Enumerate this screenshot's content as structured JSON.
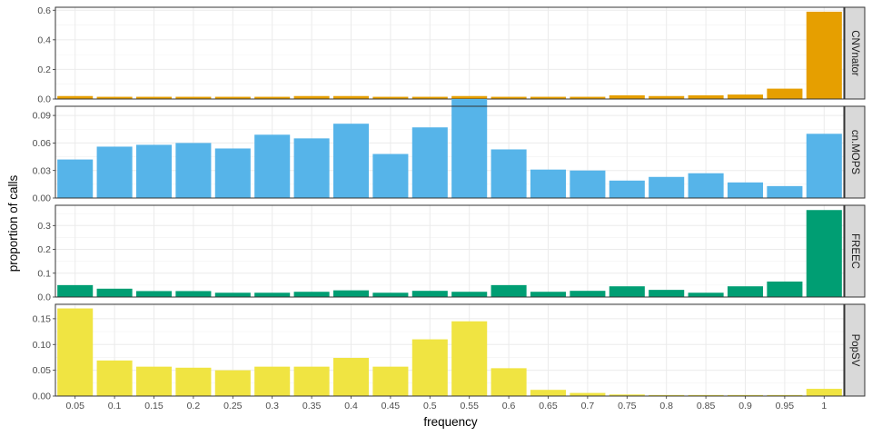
{
  "chart_data": {
    "type": "bar",
    "xlabel": "frequency",
    "ylabel": "proportion of calls",
    "categories": [
      "0.05",
      "0.1",
      "0.15",
      "0.2",
      "0.25",
      "0.3",
      "0.35",
      "0.4",
      "0.45",
      "0.5",
      "0.55",
      "0.6",
      "0.65",
      "0.7",
      "0.75",
      "0.8",
      "0.85",
      "0.9",
      "0.95",
      "1"
    ],
    "grid": true,
    "legend": "none",
    "panels": [
      {
        "name": "CNVnator",
        "color": "#E69F00",
        "ylim": [
          0,
          0.62
        ],
        "yticks": [
          0.0,
          0.2,
          0.4,
          0.6
        ],
        "ytick_labels": [
          "0.0",
          "0.2",
          "0.4",
          "0.6"
        ],
        "values": [
          0.02,
          0.015,
          0.015,
          0.015,
          0.015,
          0.015,
          0.02,
          0.02,
          0.015,
          0.015,
          0.02,
          0.015,
          0.015,
          0.015,
          0.025,
          0.02,
          0.025,
          0.03,
          0.07,
          0.59
        ]
      },
      {
        "name": "cn.MOPS",
        "color": "#56B4E9",
        "ylim": [
          0,
          0.1
        ],
        "yticks": [
          0.0,
          0.03,
          0.06,
          0.09
        ],
        "ytick_labels": [
          "0.00",
          "0.03",
          "0.06",
          "0.09"
        ],
        "values": [
          0.042,
          0.056,
          0.058,
          0.06,
          0.054,
          0.069,
          0.065,
          0.081,
          0.048,
          0.077,
          0.108,
          0.053,
          0.031,
          0.03,
          0.019,
          0.023,
          0.027,
          0.017,
          0.013,
          0.07
        ]
      },
      {
        "name": "FREEC",
        "color": "#009E73",
        "ylim": [
          0,
          0.385
        ],
        "yticks": [
          0.0,
          0.1,
          0.2,
          0.3
        ],
        "ytick_labels": [
          "0.0",
          "0.1",
          "0.2",
          "0.3"
        ],
        "values": [
          0.05,
          0.035,
          0.025,
          0.025,
          0.018,
          0.018,
          0.022,
          0.028,
          0.018,
          0.026,
          0.022,
          0.05,
          0.022,
          0.026,
          0.045,
          0.03,
          0.018,
          0.045,
          0.065,
          0.365
        ]
      },
      {
        "name": "PopSV",
        "color": "#F0E442",
        "ylim": [
          0,
          0.178
        ],
        "yticks": [
          0.0,
          0.05,
          0.1,
          0.15
        ],
        "ytick_labels": [
          "0.00",
          "0.05",
          "0.10",
          "0.15"
        ],
        "values": [
          0.17,
          0.069,
          0.057,
          0.055,
          0.05,
          0.057,
          0.057,
          0.074,
          0.057,
          0.11,
          0.145,
          0.054,
          0.012,
          0.006,
          0.003,
          0.002,
          0.002,
          0.002,
          0.002,
          0.014
        ]
      }
    ]
  }
}
